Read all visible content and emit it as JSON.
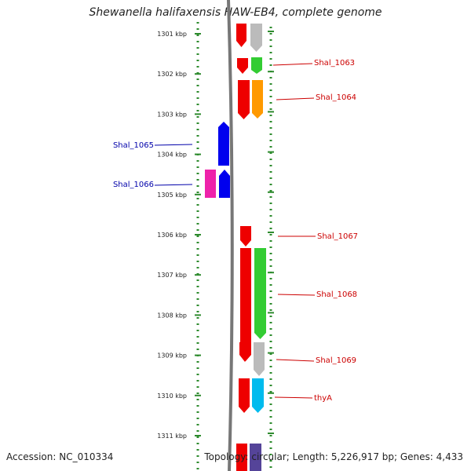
{
  "title": "Shewanella halifaxensis HAW-EB4, complete genome",
  "accession": "Accession: NC_010334",
  "topology": "Topology: circular; Length: 5,226,917 bp; Genes: 4,433",
  "kbp_ticks": [
    "1301 kbp",
    "1302 kbp",
    "1303 kbp",
    "1304 kbp",
    "1305 kbp",
    "1306 kbp",
    "1307 kbp",
    "1308 kbp",
    "1309 kbp",
    "1310 kbp",
    "1311 kbp"
  ],
  "colors": {
    "forward_label": "#cc0000",
    "reverse_label": "#0000aa",
    "tick": "#2e8b2e",
    "backbone": "#777777",
    "red": "#ee0000",
    "gray": "#bbbbbb",
    "green": "#33cc33",
    "orange": "#ff9900",
    "blue": "#0000ee",
    "magenta": "#ee22aa",
    "cyan": "#00bbee",
    "purple": "#554499"
  },
  "gene_labels": [
    {
      "text": "Shal_1063",
      "strand": "forward"
    },
    {
      "text": "Shal_1064",
      "strand": "forward"
    },
    {
      "text": "Shal_1065",
      "strand": "reverse"
    },
    {
      "text": "Shal_1066",
      "strand": "reverse"
    },
    {
      "text": "Shal_1067",
      "strand": "forward"
    },
    {
      "text": "Shal_1068",
      "strand": "forward"
    },
    {
      "text": "Shal_1069",
      "strand": "forward"
    },
    {
      "text": "thyA",
      "strand": "forward"
    }
  ]
}
